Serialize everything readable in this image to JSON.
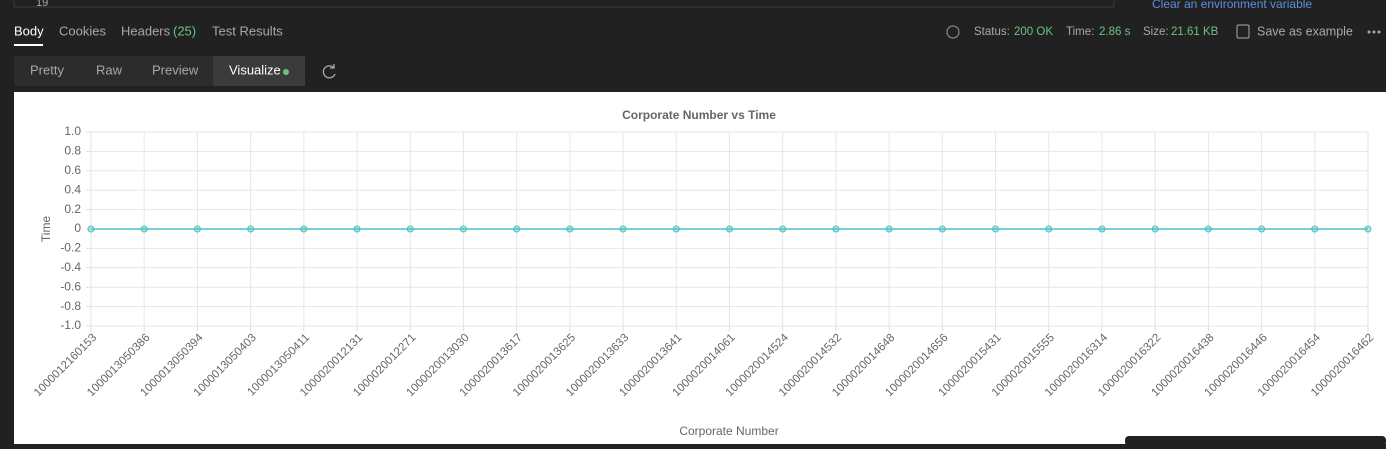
{
  "top_bar": {
    "row_number": "19",
    "link": "Clear an environment variable"
  },
  "response_tabs": {
    "body": "Body",
    "cookies": "Cookies",
    "headers": "Headers",
    "headers_count": "(25)",
    "test_results": "Test Results"
  },
  "status": {
    "status_label": "Status:",
    "status_value": "200 OK",
    "time_label": "Time:",
    "time_value": "2.86 s",
    "size_label": "Size:",
    "size_value": "21.61 KB",
    "save": "Save as example"
  },
  "view_tabs": {
    "pretty": "Pretty",
    "raw": "Raw",
    "preview": "Preview",
    "visualize": "Visualize"
  },
  "chart_data": {
    "type": "line",
    "title": "Corporate Number vs Time",
    "x_label": "Corporate Number",
    "y_label": "Time",
    "categories": [
      "1000012160153",
      "1000013050386",
      "1000013050394",
      "1000013050403",
      "1000013050411",
      "1000020012131",
      "1000020012271",
      "1000020013030",
      "1000020013617",
      "1000020013625",
      "1000020013633",
      "1000020013641",
      "1000020014061",
      "1000020014524",
      "1000020014532",
      "1000020014648",
      "1000020014656",
      "1000020015431",
      "1000020015555",
      "1000020016314",
      "1000020016322",
      "1000020016438",
      "1000020016446",
      "1000020016454",
      "1000020016462"
    ],
    "values": [
      0,
      0,
      0,
      0,
      0,
      0,
      0,
      0,
      0,
      0,
      0,
      0,
      0,
      0,
      0,
      0,
      0,
      0,
      0,
      0,
      0,
      0,
      0,
      0,
      0
    ],
    "color": "#4bc0c0",
    "ylim": [
      -1,
      1
    ],
    "yticks": [
      {
        "value": -1,
        "label": "-1.0"
      },
      -0.8,
      -0.6,
      -0.4,
      -0.2,
      0,
      0.2,
      0.4,
      0.6,
      0.8,
      {
        "value": 1,
        "label": "1.0"
      }
    ],
    "grid": true
  }
}
